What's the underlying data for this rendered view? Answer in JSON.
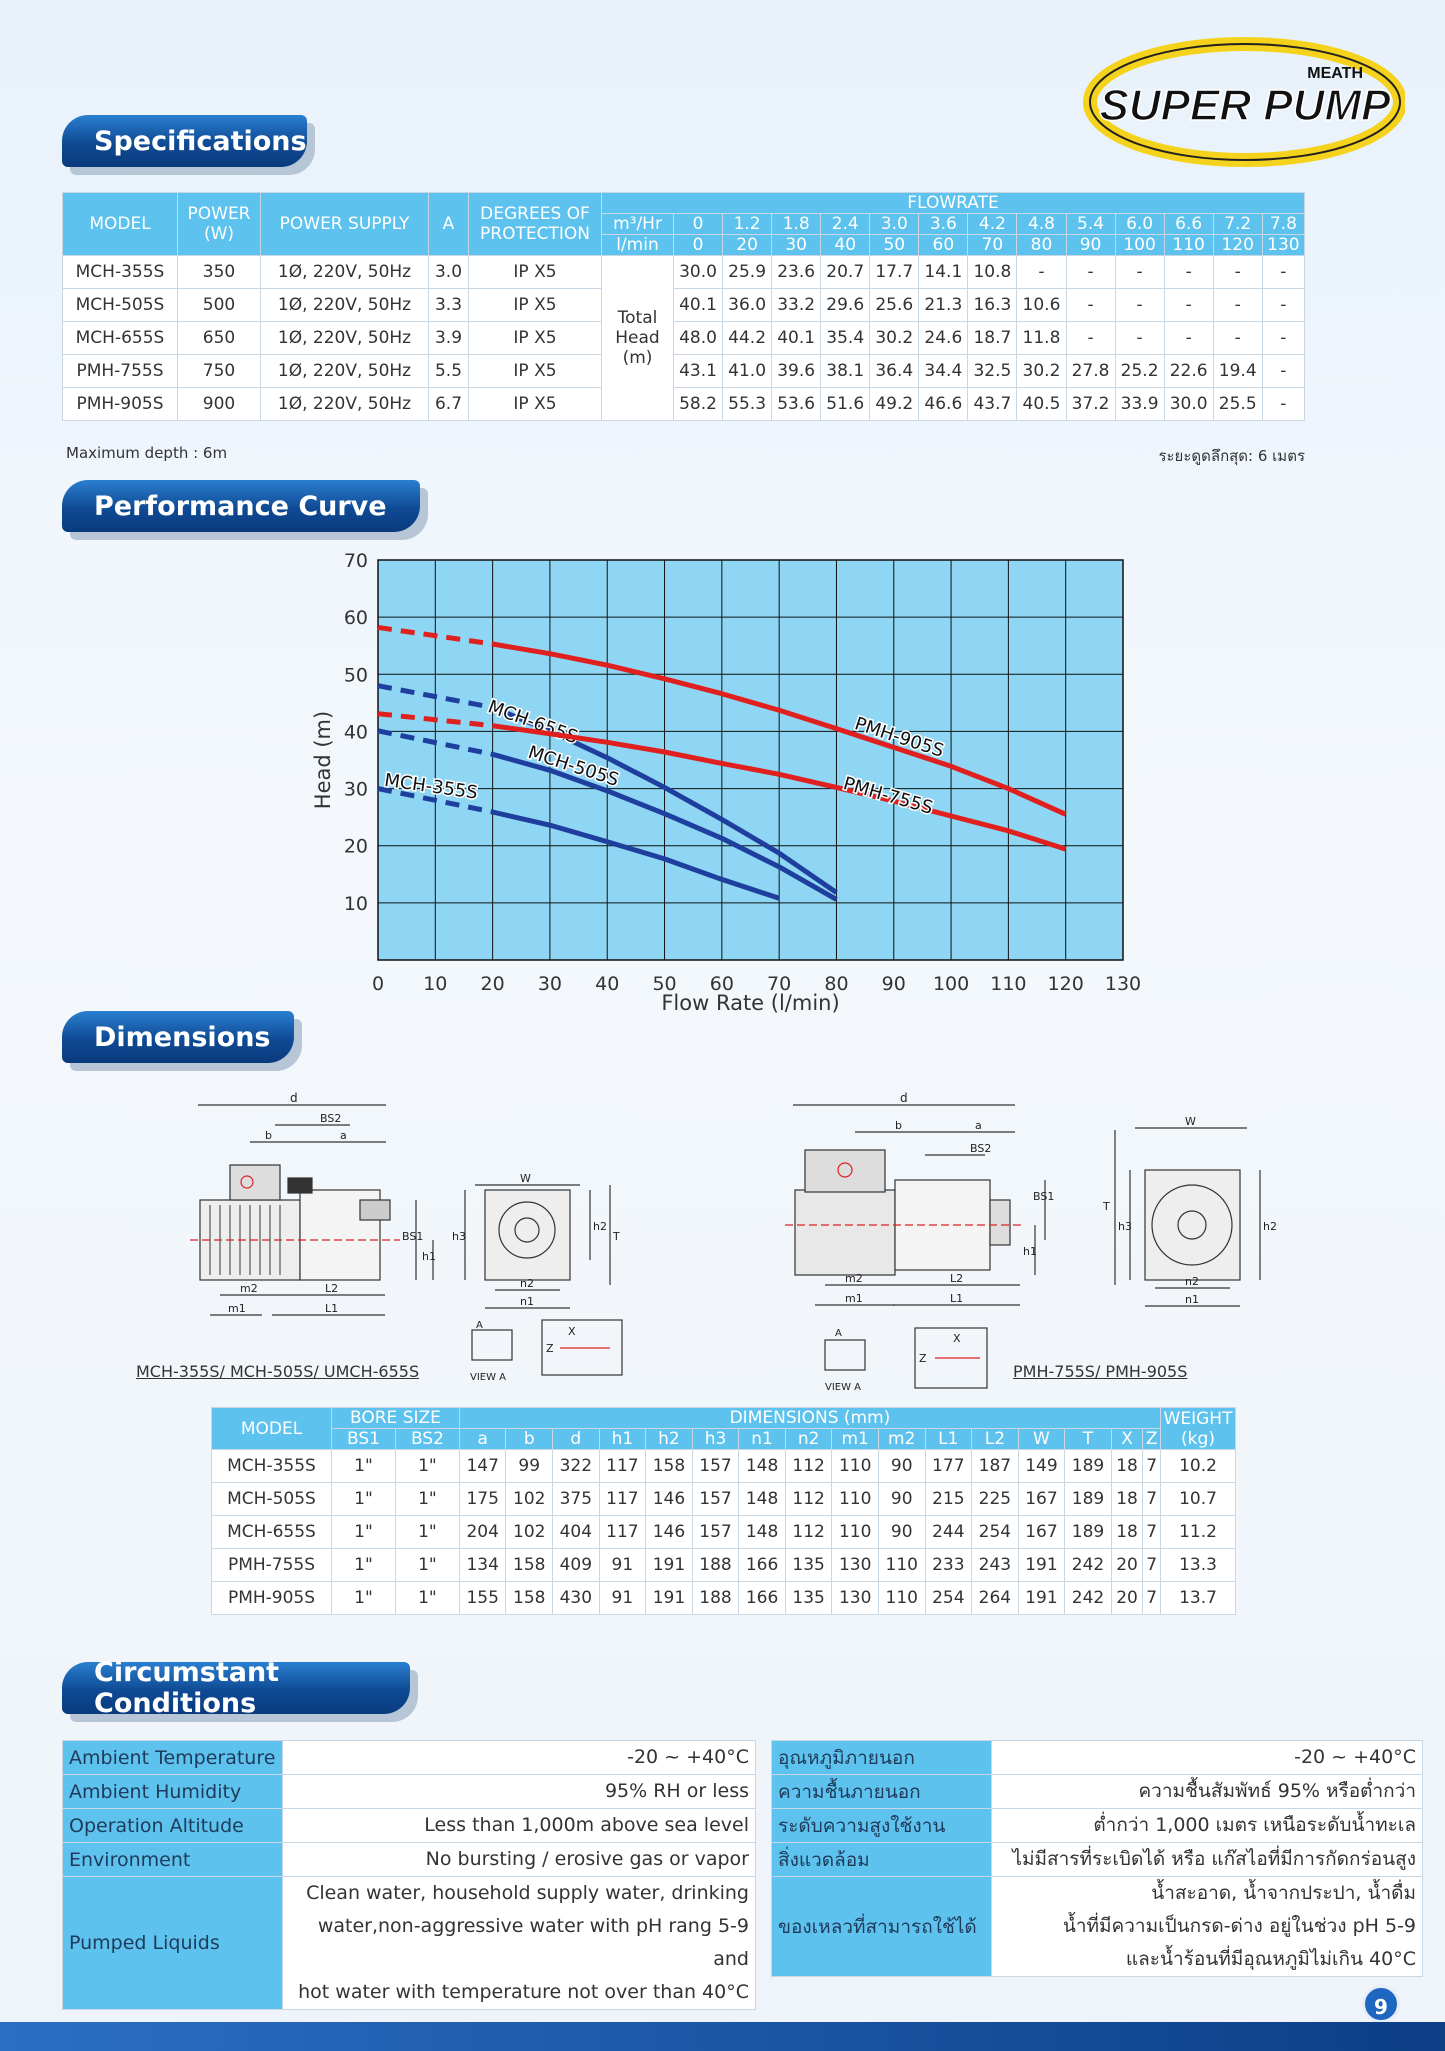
{
  "brand": {
    "top": "MEATH",
    "name": "SUPER PUMP"
  },
  "sections": {
    "specs": "Specifications",
    "curve": "Performance Curve",
    "dims": "Dimensions",
    "conds": "Circumstant Conditions"
  },
  "spec": {
    "headers": {
      "model": "MODEL",
      "power": "POWER (W)",
      "supply": "POWER SUPPLY",
      "amp": "A",
      "protection": "DEGREES OF PROTECTION",
      "flowrate": "FLOWRATE",
      "m3hr": "m³/Hr",
      "lmin": "l/min",
      "head": "Total Head (m)"
    },
    "m3hr": [
      "0",
      "1.2",
      "1.8",
      "2.4",
      "3.0",
      "3.6",
      "4.2",
      "4.8",
      "5.4",
      "6.0",
      "6.6",
      "7.2",
      "7.8"
    ],
    "lmin": [
      "0",
      "20",
      "30",
      "40",
      "50",
      "60",
      "70",
      "80",
      "90",
      "100",
      "110",
      "120",
      "130"
    ],
    "rows": [
      {
        "model": "MCH-355S",
        "power": "350",
        "supply": "1Ø, 220V, 50Hz",
        "amp": "3.0",
        "ip": "IP X5",
        "head": [
          "30.0",
          "25.9",
          "23.6",
          "20.7",
          "17.7",
          "14.1",
          "10.8",
          "-",
          "-",
          "-",
          "-",
          "-",
          "-"
        ]
      },
      {
        "model": "MCH-505S",
        "power": "500",
        "supply": "1Ø, 220V, 50Hz",
        "amp": "3.3",
        "ip": "IP X5",
        "head": [
          "40.1",
          "36.0",
          "33.2",
          "29.6",
          "25.6",
          "21.3",
          "16.3",
          "10.6",
          "-",
          "-",
          "-",
          "-",
          "-"
        ]
      },
      {
        "model": "MCH-655S",
        "power": "650",
        "supply": "1Ø, 220V, 50Hz",
        "amp": "3.9",
        "ip": "IP X5",
        "head": [
          "48.0",
          "44.2",
          "40.1",
          "35.4",
          "30.2",
          "24.6",
          "18.7",
          "11.8",
          "-",
          "-",
          "-",
          "-",
          "-"
        ]
      },
      {
        "model": "PMH-755S",
        "power": "750",
        "supply": "1Ø, 220V, 50Hz",
        "amp": "5.5",
        "ip": "IP X5",
        "head": [
          "43.1",
          "41.0",
          "39.6",
          "38.1",
          "36.4",
          "34.4",
          "32.5",
          "30.2",
          "27.8",
          "25.2",
          "22.6",
          "19.4",
          "-"
        ]
      },
      {
        "model": "PMH-905S",
        "power": "900",
        "supply": "1Ø, 220V, 50Hz",
        "amp": "6.7",
        "ip": "IP X5",
        "head": [
          "58.2",
          "55.3",
          "53.6",
          "51.6",
          "49.2",
          "46.6",
          "43.7",
          "40.5",
          "37.2",
          "33.9",
          "30.0",
          "25.5",
          "-"
        ]
      }
    ],
    "note_left": "Maximum depth : 6m",
    "note_right": "ระยะดูดลึกสุด: 6 เมตร"
  },
  "chart_data": {
    "type": "line",
    "xlabel": "Flow Rate (l/min)",
    "ylabel": "Head (m)",
    "xlim": [
      0,
      130
    ],
    "ylim": [
      0,
      70
    ],
    "xticks": [
      0,
      10,
      20,
      30,
      40,
      50,
      60,
      70,
      80,
      90,
      100,
      110,
      120,
      130
    ],
    "yticks": [
      10,
      20,
      30,
      40,
      50,
      60,
      70
    ],
    "grid": true,
    "series": [
      {
        "name": "MCH-355S",
        "color": "#1f3f9e",
        "x": [
          0,
          20,
          30,
          40,
          50,
          60,
          70
        ],
        "y": [
          30.0,
          25.9,
          23.6,
          20.7,
          17.7,
          14.1,
          10.8
        ]
      },
      {
        "name": "MCH-505S",
        "color": "#1f3f9e",
        "x": [
          0,
          20,
          30,
          40,
          50,
          60,
          70,
          80
        ],
        "y": [
          40.1,
          36.0,
          33.2,
          29.6,
          25.6,
          21.3,
          16.3,
          10.6
        ]
      },
      {
        "name": "MCH-655S",
        "color": "#1f3f9e",
        "x": [
          0,
          20,
          30,
          40,
          50,
          60,
          70,
          80
        ],
        "y": [
          48.0,
          44.2,
          40.1,
          35.4,
          30.2,
          24.6,
          18.7,
          11.8
        ]
      },
      {
        "name": "PMH-755S",
        "color": "#e0201f",
        "x": [
          0,
          20,
          30,
          40,
          50,
          60,
          70,
          80,
          90,
          100,
          110,
          120
        ],
        "y": [
          43.1,
          41.0,
          39.6,
          38.1,
          36.4,
          34.4,
          32.5,
          30.2,
          27.8,
          25.2,
          22.6,
          19.4
        ]
      },
      {
        "name": "PMH-905S",
        "color": "#e0201f",
        "x": [
          0,
          20,
          30,
          40,
          50,
          60,
          70,
          80,
          90,
          100,
          110,
          120
        ],
        "y": [
          58.2,
          55.3,
          53.6,
          51.6,
          49.2,
          46.6,
          43.7,
          40.5,
          37.2,
          33.9,
          30.0,
          25.5
        ]
      }
    ]
  },
  "dims": {
    "caption_left": "MCH-355S/ MCH-505S/ UMCH-655S",
    "caption_right": "PMH-755S/ PMH-905S",
    "view_a": "VIEW A",
    "headers": {
      "model": "MODEL",
      "bore": "BORE SIZE",
      "dims": "DIMENSIONS (mm)",
      "weight": "WEIGHT (kg)"
    },
    "cols": [
      "BS1",
      "BS2",
      "a",
      "b",
      "d",
      "h1",
      "h2",
      "h3",
      "n1",
      "n2",
      "m1",
      "m2",
      "L1",
      "L2",
      "W",
      "T",
      "X",
      "Z"
    ],
    "rows": [
      {
        "model": "MCH-355S",
        "vals": [
          "1\"",
          "1\"",
          "147",
          "99",
          "322",
          "117",
          "158",
          "157",
          "148",
          "112",
          "110",
          "90",
          "177",
          "187",
          "149",
          "189",
          "18",
          "7"
        ],
        "weight": "10.2"
      },
      {
        "model": "MCH-505S",
        "vals": [
          "1\"",
          "1\"",
          "175",
          "102",
          "375",
          "117",
          "146",
          "157",
          "148",
          "112",
          "110",
          "90",
          "215",
          "225",
          "167",
          "189",
          "18",
          "7"
        ],
        "weight": "10.7"
      },
      {
        "model": "MCH-655S",
        "vals": [
          "1\"",
          "1\"",
          "204",
          "102",
          "404",
          "117",
          "146",
          "157",
          "148",
          "112",
          "110",
          "90",
          "244",
          "254",
          "167",
          "189",
          "18",
          "7"
        ],
        "weight": "11.2"
      },
      {
        "model": "PMH-755S",
        "vals": [
          "1\"",
          "1\"",
          "134",
          "158",
          "409",
          "91",
          "191",
          "188",
          "166",
          "135",
          "130",
          "110",
          "233",
          "243",
          "191",
          "242",
          "20",
          "7"
        ],
        "weight": "13.3"
      },
      {
        "model": "PMH-905S",
        "vals": [
          "1\"",
          "1\"",
          "155",
          "158",
          "430",
          "91",
          "191",
          "188",
          "166",
          "135",
          "130",
          "110",
          "254",
          "264",
          "191",
          "242",
          "20",
          "7"
        ],
        "weight": "13.7"
      }
    ]
  },
  "conds_en": [
    {
      "label": "Ambient Temperature",
      "value": "-20 ~ +40°C"
    },
    {
      "label": "Ambient Humidity",
      "value": "95% RH or less"
    },
    {
      "label": "Operation Altitude",
      "value": "Less than 1,000m above sea level"
    },
    {
      "label": "Environment",
      "value": "No bursting / erosive gas or vapor"
    },
    {
      "label": "Pumped Liquids",
      "value": [
        "Clean water, household supply water, drinking",
        "water,non-aggressive water with pH rang 5-9 and",
        "hot water with temperature not over than 40°C"
      ]
    }
  ],
  "conds_th": [
    {
      "label": "อุณหภูมิภายนอก",
      "value": "-20 ~ +40°C"
    },
    {
      "label": "ความชื้นภายนอก",
      "value": "ความชื้นสัมพัทธ์ 95% หรือต่ำกว่า"
    },
    {
      "label": "ระดับความสูงใช้งาน",
      "value": "ต่ำกว่า 1,000 เมตร เหนือระดับน้ำทะเล"
    },
    {
      "label": "สิ่งแวดล้อม",
      "value": "ไม่มีสารที่ระเบิดได้ หรือ แก๊สไอที่มีการกัดกร่อนสูง"
    },
    {
      "label": "ของเหลวที่สามารถใช้ได้",
      "value": [
        "น้ำสะอาด, น้ำจากประปา, น้ำดื่ม",
        "น้ำที่มีความเป็นกรด-ด่าง อยู่ในช่วง pH 5-9",
        "และน้ำร้อนที่มีอุณหภูมิไม่เกิน 40°C"
      ]
    }
  ],
  "page_number": "9"
}
